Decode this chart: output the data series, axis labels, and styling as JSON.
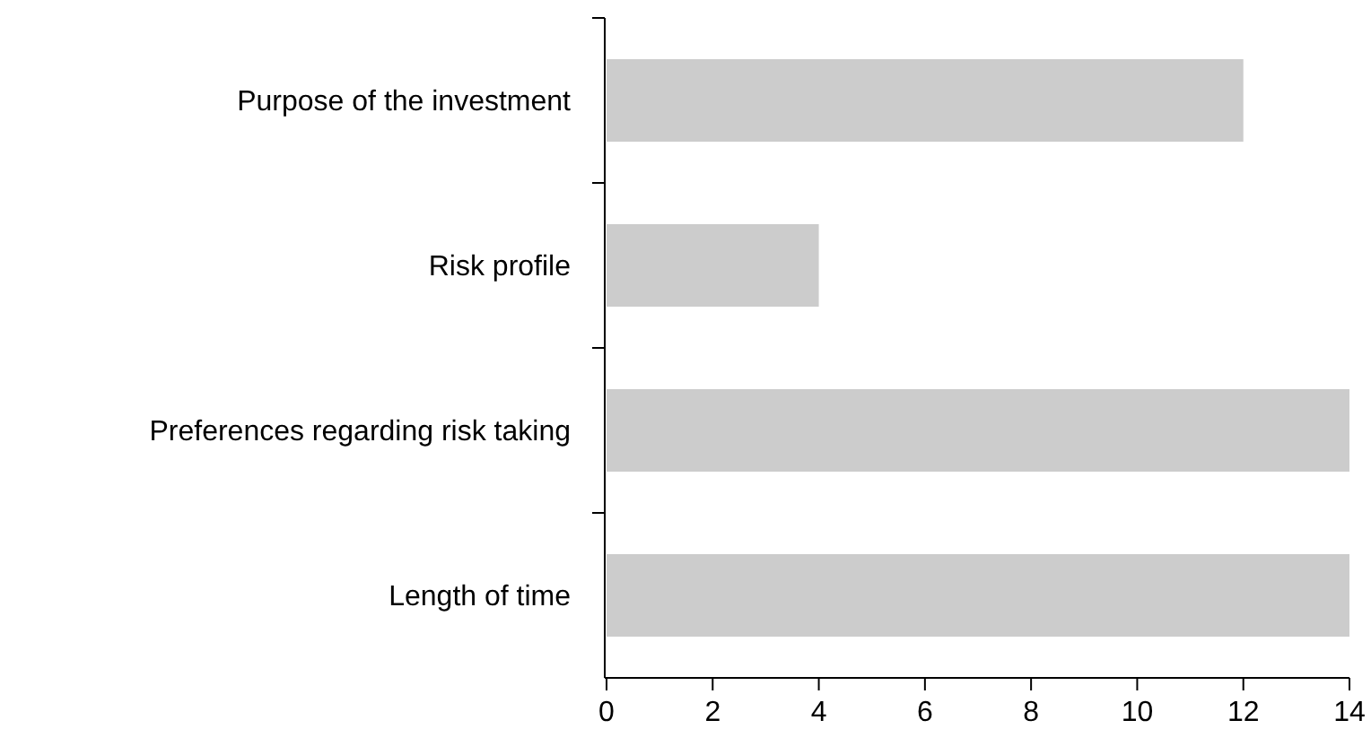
{
  "chart_data": {
    "type": "bar",
    "orientation": "horizontal",
    "categories": [
      "Purpose of the investment",
      "Risk profile",
      "Preferences regarding risk taking",
      "Length of time"
    ],
    "values": [
      12,
      4,
      14,
      14
    ],
    "color": "#cccccc",
    "xlim": [
      0,
      14
    ],
    "xticks": [
      0,
      2,
      4,
      6,
      8,
      10,
      12,
      14
    ],
    "grid": false
  }
}
